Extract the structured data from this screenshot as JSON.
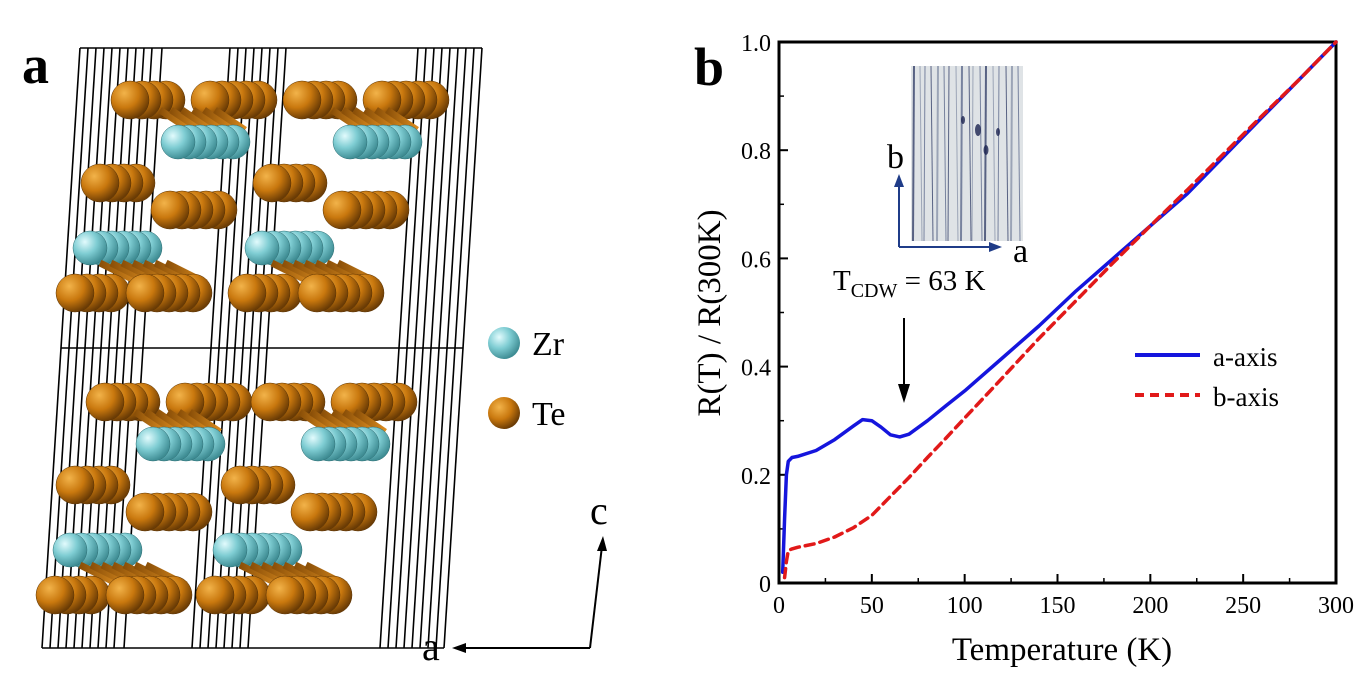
{
  "panel_a": {
    "label": "a",
    "legend": [
      {
        "element": "Zr",
        "color": "#6ec5cc"
      },
      {
        "element": "Te",
        "color": "#c9780e"
      }
    ],
    "axes": {
      "horizontal": "a",
      "vertical": "c"
    }
  },
  "panel_b": {
    "label": "b",
    "annotation": {
      "prefix": "T",
      "subscript": "CDW",
      "suffix": " = 63 K"
    },
    "inset_axes": {
      "horizontal": "a",
      "vertical": "b"
    }
  },
  "chart_data": {
    "type": "line",
    "title": "",
    "xlabel": "Temperature (K)",
    "ylabel": "R(T) / R(300K)",
    "xlim": [
      0,
      300
    ],
    "ylim": [
      0,
      1.0
    ],
    "xticks": [
      "0",
      "50",
      "100",
      "150",
      "200",
      "250",
      "300"
    ],
    "yticks": [
      "0",
      "0.2",
      "0.4",
      "0.6",
      "0.8",
      "1.0"
    ],
    "legend_position": "right",
    "series": [
      {
        "name": "a-axis",
        "color": "#1515dd",
        "dash": "solid",
        "x": [
          2,
          3,
          4,
          5,
          7,
          10,
          20,
          30,
          40,
          45,
          50,
          55,
          60,
          65,
          70,
          80,
          90,
          100,
          120,
          140,
          160,
          180,
          200,
          220,
          240,
          260,
          280,
          300
        ],
        "y": [
          0.02,
          0.12,
          0.2,
          0.225,
          0.232,
          0.234,
          0.245,
          0.265,
          0.29,
          0.302,
          0.3,
          0.288,
          0.274,
          0.27,
          0.275,
          0.3,
          0.328,
          0.355,
          0.415,
          0.475,
          0.54,
          0.6,
          0.66,
          0.72,
          0.79,
          0.86,
          0.93,
          1.0
        ]
      },
      {
        "name": "b-axis",
        "color": "#e11919",
        "dash": "dashed",
        "x": [
          3,
          4,
          5,
          7,
          10,
          20,
          30,
          40,
          50,
          60,
          70,
          80,
          90,
          100,
          120,
          140,
          160,
          180,
          200,
          220,
          240,
          260,
          280,
          300
        ],
        "y": [
          0.01,
          0.04,
          0.06,
          0.063,
          0.066,
          0.073,
          0.085,
          0.102,
          0.125,
          0.16,
          0.195,
          0.232,
          0.268,
          0.305,
          0.378,
          0.452,
          0.522,
          0.592,
          0.66,
          0.727,
          0.795,
          0.863,
          0.93,
          1.0
        ]
      }
    ]
  }
}
